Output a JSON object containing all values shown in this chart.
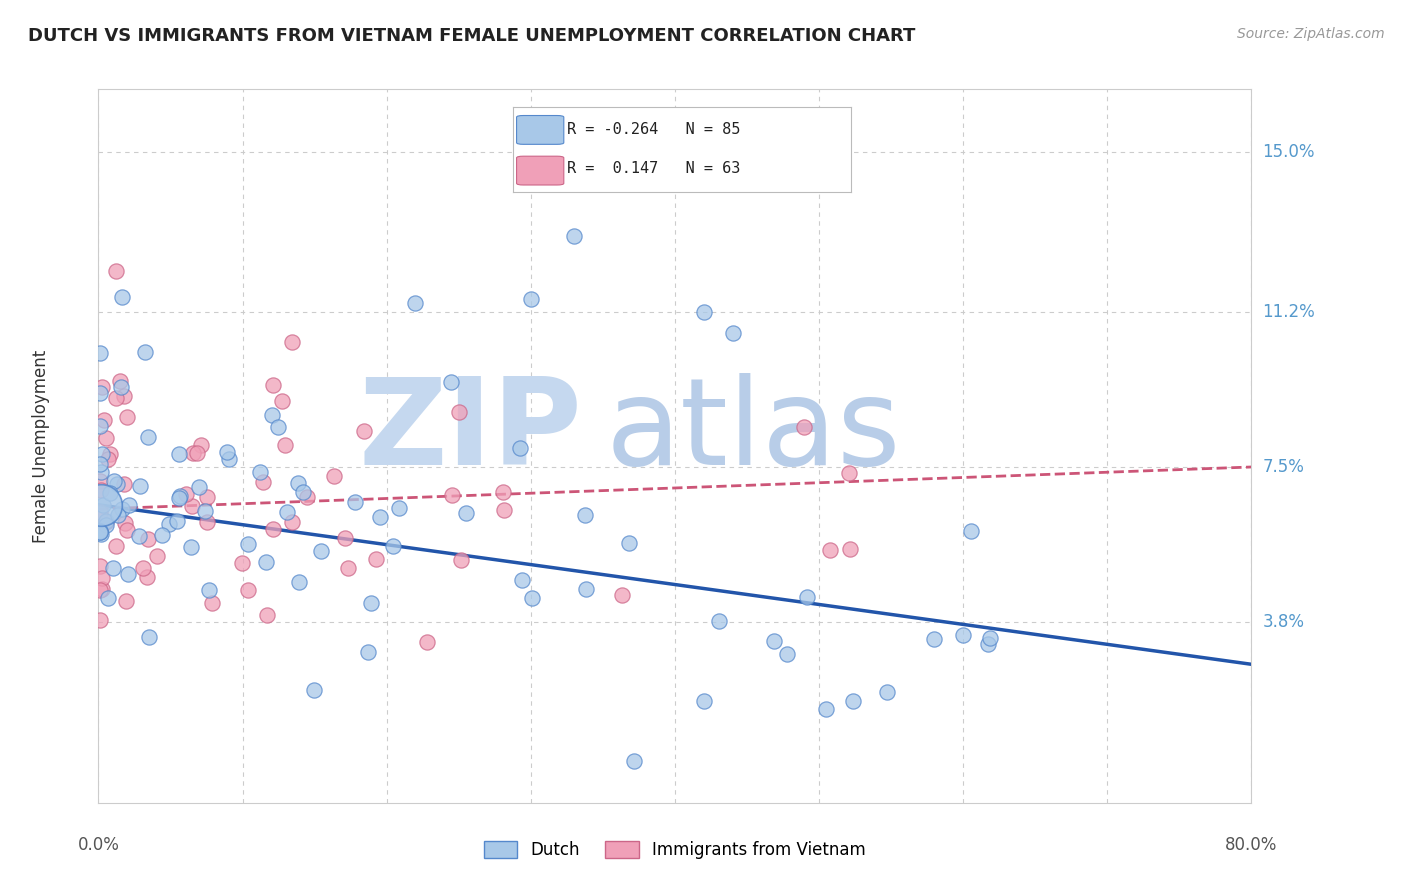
{
  "title": "DUTCH VS IMMIGRANTS FROM VIETNAM FEMALE UNEMPLOYMENT CORRELATION CHART",
  "source": "Source: ZipAtlas.com",
  "ylabel": "Female Unemployment",
  "ytick_values": [
    0.038,
    0.075,
    0.112,
    0.15
  ],
  "ytick_labels": [
    "3.8%",
    "7.5%",
    "11.2%",
    "15.0%"
  ],
  "legend_r": [
    -0.264,
    0.147
  ],
  "legend_n": [
    85,
    63
  ],
  "blue_scatter_color": "#a8c8e8",
  "blue_edge_color": "#5588cc",
  "pink_scatter_color": "#f0a0b8",
  "pink_edge_color": "#cc6688",
  "blue_line_color": "#2255aa",
  "pink_line_color": "#cc5577",
  "watermark_zip_color": "#c5d8ef",
  "watermark_atlas_color": "#b8cde8",
  "background_color": "#ffffff",
  "grid_color": "#cccccc",
  "right_label_color": "#5599cc",
  "title_color": "#222222",
  "ylabel_color": "#333333",
  "source_color": "#999999",
  "xlim_data": [
    0.0,
    0.8
  ],
  "ylim_data": [
    -0.005,
    0.165
  ],
  "dutch_trend": [
    0.0665,
    -0.048
  ],
  "viet_trend": [
    0.063,
    0.018
  ]
}
